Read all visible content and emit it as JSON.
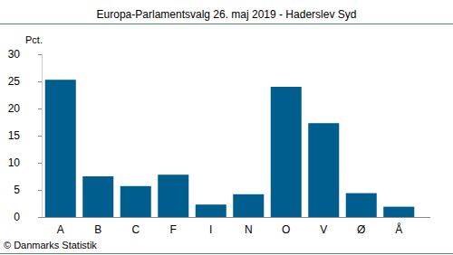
{
  "chart_data": {
    "type": "bar",
    "title": "Europa-Parlamentsvalg 26. maj 2019 - Haderslev Syd",
    "y_label": "Pct.",
    "source": "© Danmarks Statistik",
    "categories": [
      "A",
      "B",
      "C",
      "F",
      "I",
      "N",
      "O",
      "V",
      "Ø",
      "Å"
    ],
    "values": [
      25.3,
      7.5,
      5.7,
      7.8,
      2.3,
      4.2,
      24.0,
      17.3,
      4.4,
      1.9
    ],
    "color": "#005e8e",
    "ylim": [
      0,
      30
    ],
    "yticks": [
      0,
      5,
      10,
      15,
      20,
      25,
      30
    ],
    "grid": false
  }
}
